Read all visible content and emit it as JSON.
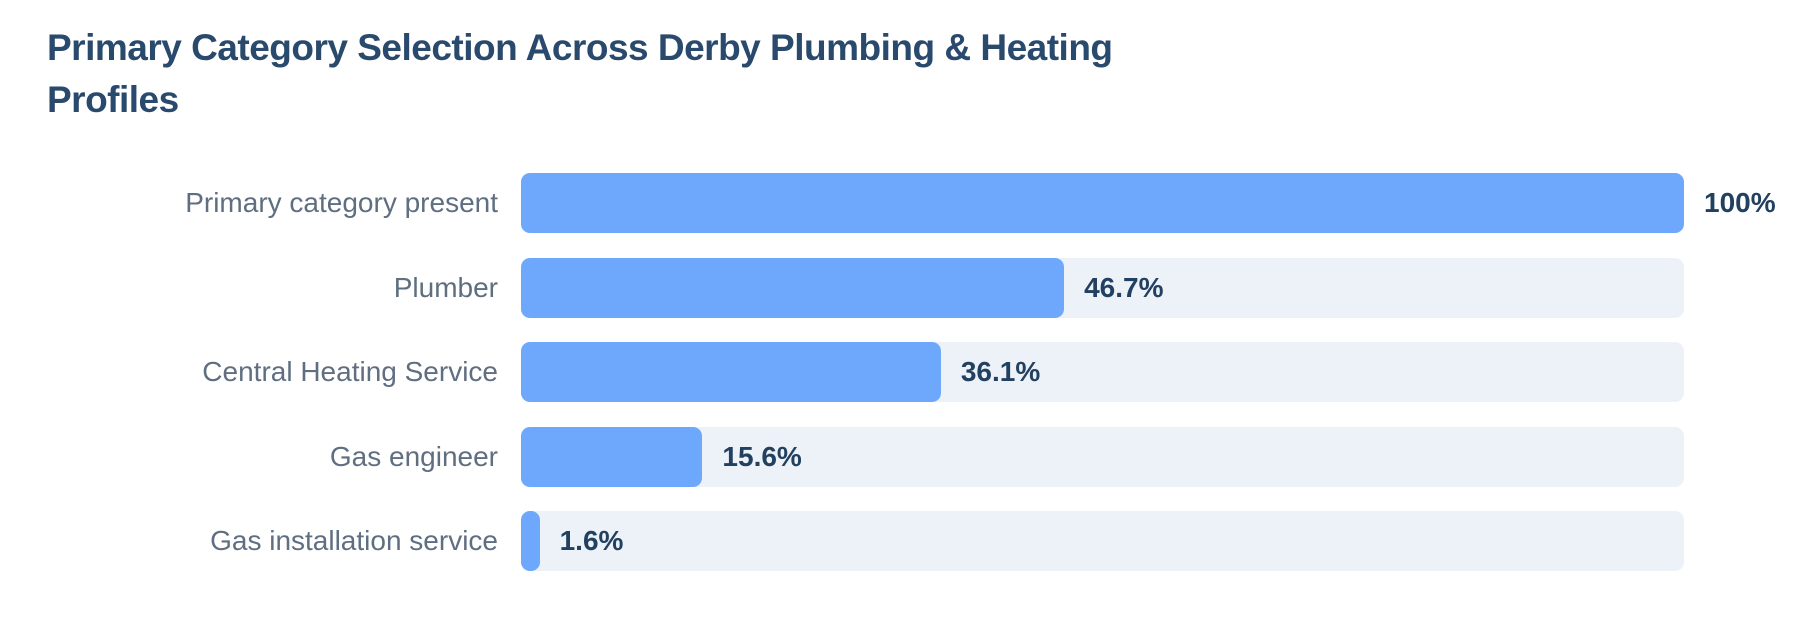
{
  "chart_data": {
    "type": "bar",
    "orientation": "horizontal",
    "title": "Primary Category Selection Across Derby Plumbing & Heating Profiles",
    "xlabel": "",
    "ylabel": "",
    "xlim": [
      0,
      100
    ],
    "grid": false,
    "categories": [
      "Primary category present",
      "Plumber",
      "Central Heating Service",
      "Gas engineer",
      "Gas installation service"
    ],
    "values": [
      100,
      46.7,
      36.1,
      15.6,
      1.6
    ],
    "value_labels": [
      "100%",
      "46.7%",
      "36.1%",
      "15.6%",
      "1.6%"
    ],
    "colors": {
      "bar": "#6ea8fd",
      "track": "#edf2f9",
      "title": "#2a4a6d",
      "category_label": "#5f6e80",
      "value_label": "#22405f"
    }
  }
}
